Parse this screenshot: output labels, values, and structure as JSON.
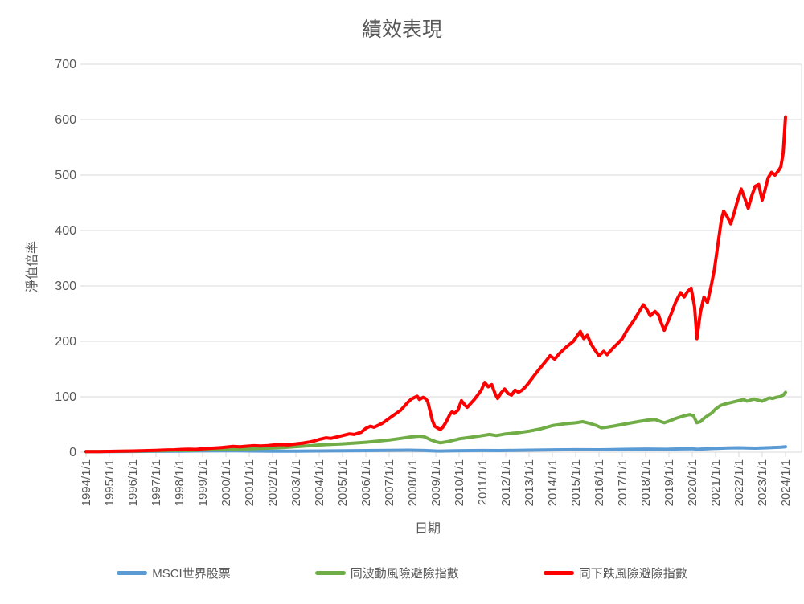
{
  "window": {
    "background": "#ffffff"
  },
  "chart_data": {
    "type": "line",
    "title": "績效表現",
    "xlabel": "日期",
    "ylabel": "淨值倍率",
    "ylim": [
      0,
      700
    ],
    "y_ticks": [
      0,
      100,
      200,
      300,
      400,
      500,
      600,
      700
    ],
    "x_tick_labels": [
      "1994/1/1",
      "1995/1/1",
      "1996/1/1",
      "1997/1/1",
      "1998/1/1",
      "1999/1/1",
      "2000/1/1",
      "2001/1/1",
      "2002/1/1",
      "2003/1/1",
      "2004/1/1",
      "2005/1/1",
      "2006/1/1",
      "2007/1/1",
      "2008/1/1",
      "2009/1/1",
      "2010/1/1",
      "2011/1/1",
      "2012/1/1",
      "2013/1/1",
      "2014/1/1",
      "2015/1/1",
      "2016/1/1",
      "2017/1/1",
      "2018/1/1",
      "2019/1/1",
      "2020/1/1",
      "2021/1/1",
      "2022/1/1",
      "2023/1/1",
      "2024/1/1"
    ],
    "x_range_years": [
      1994,
      2024
    ],
    "grid": "horizontal",
    "legend_position": "bottom",
    "axis_text_color": "#595959",
    "gridline_color": "#D9D9D9",
    "series": [
      {
        "name": "MSCI世界股票",
        "color": "#5B9BD5",
        "points": [
          [
            1994.0,
            1
          ],
          [
            1995.0,
            1.1
          ],
          [
            1996.0,
            1.3
          ],
          [
            1997.0,
            1.6
          ],
          [
            1998.0,
            1.9
          ],
          [
            1999.0,
            2.3
          ],
          [
            2000.0,
            2.6
          ],
          [
            2000.5,
            2.5
          ],
          [
            2001.0,
            2.2
          ],
          [
            2002.0,
            1.9
          ],
          [
            2002.7,
            1.7
          ],
          [
            2003.0,
            1.8
          ],
          [
            2004.0,
            2.2
          ],
          [
            2005.0,
            2.5
          ],
          [
            2006.0,
            2.9
          ],
          [
            2007.0,
            3.4
          ],
          [
            2007.8,
            3.6
          ],
          [
            2008.5,
            3.0
          ],
          [
            2009.0,
            2.2
          ],
          [
            2009.2,
            2.0
          ],
          [
            2009.8,
            2.6
          ],
          [
            2010.5,
            2.9
          ],
          [
            2011.0,
            3.1
          ],
          [
            2011.7,
            2.9
          ],
          [
            2012.0,
            3.1
          ],
          [
            2013.0,
            3.6
          ],
          [
            2014.0,
            4.2
          ],
          [
            2015.0,
            4.5
          ],
          [
            2016.0,
            4.4
          ],
          [
            2017.0,
            5.0
          ],
          [
            2018.0,
            5.6
          ],
          [
            2018.9,
            5.2
          ],
          [
            2019.5,
            6.0
          ],
          [
            2020.0,
            6.3
          ],
          [
            2020.2,
            5.2
          ],
          [
            2020.8,
            6.5
          ],
          [
            2021.5,
            7.5
          ],
          [
            2022.0,
            8.0
          ],
          [
            2022.7,
            7.2
          ],
          [
            2023.2,
            8.0
          ],
          [
            2023.8,
            9.0
          ],
          [
            2024.0,
            9.8
          ]
        ]
      },
      {
        "name": "同波動風險避險指數",
        "color": "#70AD47",
        "points": [
          [
            1994.0,
            1
          ],
          [
            1994.5,
            1.2
          ],
          [
            1995.0,
            1.4
          ],
          [
            1995.5,
            1.6
          ],
          [
            1996.0,
            1.9
          ],
          [
            1996.5,
            2.2
          ],
          [
            1997.0,
            2.5
          ],
          [
            1997.5,
            2.9
          ],
          [
            1998.0,
            3.2
          ],
          [
            1998.5,
            3.0
          ],
          [
            1999.0,
            4.0
          ],
          [
            1999.5,
            4.5
          ],
          [
            2000.0,
            5.0
          ],
          [
            2000.5,
            5.5
          ],
          [
            2001.0,
            6.2
          ],
          [
            2001.5,
            6.8
          ],
          [
            2002.0,
            7.6
          ],
          [
            2002.5,
            8.5
          ],
          [
            2003.0,
            10
          ],
          [
            2003.5,
            11.5
          ],
          [
            2004.0,
            13
          ],
          [
            2004.5,
            14
          ],
          [
            2005.0,
            15
          ],
          [
            2005.5,
            16.5
          ],
          [
            2006.0,
            18
          ],
          [
            2006.5,
            20
          ],
          [
            2007.0,
            22
          ],
          [
            2007.5,
            25
          ],
          [
            2008.0,
            28
          ],
          [
            2008.3,
            29
          ],
          [
            2008.5,
            28
          ],
          [
            2008.8,
            22
          ],
          [
            2009.0,
            19
          ],
          [
            2009.2,
            17
          ],
          [
            2009.5,
            19
          ],
          [
            2009.8,
            22
          ],
          [
            2010.0,
            24
          ],
          [
            2010.5,
            27
          ],
          [
            2011.0,
            30
          ],
          [
            2011.3,
            32
          ],
          [
            2011.6,
            30
          ],
          [
            2012.0,
            33
          ],
          [
            2012.5,
            35
          ],
          [
            2013.0,
            38
          ],
          [
            2013.5,
            42
          ],
          [
            2014.0,
            48
          ],
          [
            2014.5,
            51
          ],
          [
            2015.0,
            53
          ],
          [
            2015.3,
            55
          ],
          [
            2015.6,
            52
          ],
          [
            2015.9,
            48
          ],
          [
            2016.1,
            44
          ],
          [
            2016.3,
            45
          ],
          [
            2016.6,
            47
          ],
          [
            2017.0,
            50
          ],
          [
            2017.4,
            53
          ],
          [
            2017.8,
            56
          ],
          [
            2018.1,
            58
          ],
          [
            2018.4,
            59
          ],
          [
            2018.6,
            56
          ],
          [
            2018.8,
            53
          ],
          [
            2019.0,
            56
          ],
          [
            2019.3,
            61
          ],
          [
            2019.6,
            65
          ],
          [
            2019.9,
            68
          ],
          [
            2020.05,
            66
          ],
          [
            2020.2,
            53
          ],
          [
            2020.35,
            55
          ],
          [
            2020.5,
            61
          ],
          [
            2020.7,
            67
          ],
          [
            2020.85,
            71
          ],
          [
            2021.0,
            78
          ],
          [
            2021.2,
            84
          ],
          [
            2021.4,
            87
          ],
          [
            2021.6,
            89
          ],
          [
            2021.8,
            91
          ],
          [
            2022.0,
            93
          ],
          [
            2022.2,
            95
          ],
          [
            2022.35,
            92
          ],
          [
            2022.5,
            94
          ],
          [
            2022.65,
            96
          ],
          [
            2022.8,
            94
          ],
          [
            2023.0,
            92
          ],
          [
            2023.15,
            95
          ],
          [
            2023.3,
            98
          ],
          [
            2023.45,
            97
          ],
          [
            2023.6,
            99
          ],
          [
            2023.75,
            100
          ],
          [
            2023.9,
            103
          ],
          [
            2024.0,
            108
          ]
        ]
      },
      {
        "name": "同下跌風險避險指數",
        "color": "#FF0000",
        "points": [
          [
            1994.0,
            1
          ],
          [
            1994.3,
            1.1
          ],
          [
            1994.6,
            1.2
          ],
          [
            1995.0,
            1.5
          ],
          [
            1995.5,
            1.8
          ],
          [
            1996.0,
            2.2
          ],
          [
            1996.5,
            2.7
          ],
          [
            1997.0,
            3.3
          ],
          [
            1997.4,
            3.9
          ],
          [
            1997.8,
            4.3
          ],
          [
            1998.1,
            5.0
          ],
          [
            1998.4,
            5.4
          ],
          [
            1998.7,
            5.0
          ],
          [
            1999.0,
            6.2
          ],
          [
            1999.4,
            7.2
          ],
          [
            1999.8,
            8.2
          ],
          [
            2000.1,
            9.6
          ],
          [
            2000.3,
            10.4
          ],
          [
            2000.6,
            9.8
          ],
          [
            2000.9,
            10.8
          ],
          [
            2001.2,
            11.8
          ],
          [
            2001.5,
            11.2
          ],
          [
            2001.8,
            12.0
          ],
          [
            2002.1,
            13.2
          ],
          [
            2002.4,
            13.8
          ],
          [
            2002.7,
            13.2
          ],
          [
            2003.0,
            15
          ],
          [
            2003.3,
            16.5
          ],
          [
            2003.6,
            18.5
          ],
          [
            2003.8,
            20.5
          ],
          [
            2004.0,
            23
          ],
          [
            2004.3,
            26
          ],
          [
            2004.5,
            25
          ],
          [
            2004.8,
            28
          ],
          [
            2005.0,
            30
          ],
          [
            2005.3,
            33
          ],
          [
            2005.5,
            32
          ],
          [
            2005.8,
            36
          ],
          [
            2006.0,
            43
          ],
          [
            2006.2,
            47
          ],
          [
            2006.35,
            45
          ],
          [
            2006.5,
            48
          ],
          [
            2006.7,
            52
          ],
          [
            2006.9,
            58
          ],
          [
            2007.1,
            64
          ],
          [
            2007.3,
            70
          ],
          [
            2007.5,
            76
          ],
          [
            2007.65,
            83
          ],
          [
            2007.8,
            90
          ],
          [
            2007.95,
            96
          ],
          [
            2008.1,
            99
          ],
          [
            2008.2,
            101
          ],
          [
            2008.3,
            95
          ],
          [
            2008.45,
            99
          ],
          [
            2008.55,
            97
          ],
          [
            2008.65,
            92
          ],
          [
            2008.75,
            75
          ],
          [
            2008.85,
            58
          ],
          [
            2008.95,
            47
          ],
          [
            2009.1,
            43
          ],
          [
            2009.2,
            41
          ],
          [
            2009.3,
            45
          ],
          [
            2009.45,
            55
          ],
          [
            2009.6,
            68
          ],
          [
            2009.7,
            73
          ],
          [
            2009.8,
            70
          ],
          [
            2009.95,
            76
          ],
          [
            2010.1,
            93
          ],
          [
            2010.25,
            85
          ],
          [
            2010.35,
            81
          ],
          [
            2010.5,
            88
          ],
          [
            2010.65,
            95
          ],
          [
            2010.8,
            103
          ],
          [
            2010.95,
            112
          ],
          [
            2011.1,
            126
          ],
          [
            2011.25,
            118
          ],
          [
            2011.4,
            122
          ],
          [
            2011.55,
            105
          ],
          [
            2011.65,
            97
          ],
          [
            2011.8,
            107
          ],
          [
            2011.95,
            114
          ],
          [
            2012.1,
            106
          ],
          [
            2012.25,
            103
          ],
          [
            2012.4,
            112
          ],
          [
            2012.55,
            108
          ],
          [
            2012.7,
            112
          ],
          [
            2012.85,
            118
          ],
          [
            2013.0,
            126
          ],
          [
            2013.25,
            140
          ],
          [
            2013.5,
            153
          ],
          [
            2013.75,
            166
          ],
          [
            2013.9,
            174
          ],
          [
            2014.1,
            168
          ],
          [
            2014.3,
            178
          ],
          [
            2014.6,
            190
          ],
          [
            2014.9,
            200
          ],
          [
            2015.05,
            209
          ],
          [
            2015.2,
            218
          ],
          [
            2015.35,
            205
          ],
          [
            2015.5,
            211
          ],
          [
            2015.65,
            196
          ],
          [
            2015.8,
            186
          ],
          [
            2016.0,
            174
          ],
          [
            2016.2,
            182
          ],
          [
            2016.35,
            176
          ],
          [
            2016.6,
            188
          ],
          [
            2016.8,
            196
          ],
          [
            2017.0,
            205
          ],
          [
            2017.2,
            220
          ],
          [
            2017.5,
            238
          ],
          [
            2017.7,
            252
          ],
          [
            2017.9,
            266
          ],
          [
            2018.05,
            258
          ],
          [
            2018.2,
            246
          ],
          [
            2018.4,
            254
          ],
          [
            2018.55,
            248
          ],
          [
            2018.7,
            230
          ],
          [
            2018.8,
            220
          ],
          [
            2018.95,
            235
          ],
          [
            2019.1,
            250
          ],
          [
            2019.3,
            272
          ],
          [
            2019.5,
            288
          ],
          [
            2019.65,
            280
          ],
          [
            2019.8,
            290
          ],
          [
            2019.95,
            296
          ],
          [
            2020.1,
            262
          ],
          [
            2020.2,
            205
          ],
          [
            2020.35,
            252
          ],
          [
            2020.5,
            280
          ],
          [
            2020.65,
            270
          ],
          [
            2020.8,
            298
          ],
          [
            2020.95,
            330
          ],
          [
            2021.1,
            375
          ],
          [
            2021.25,
            420
          ],
          [
            2021.35,
            435
          ],
          [
            2021.5,
            425
          ],
          [
            2021.65,
            412
          ],
          [
            2021.8,
            432
          ],
          [
            2021.95,
            455
          ],
          [
            2022.1,
            475
          ],
          [
            2022.25,
            458
          ],
          [
            2022.4,
            440
          ],
          [
            2022.55,
            462
          ],
          [
            2022.7,
            480
          ],
          [
            2022.85,
            483
          ],
          [
            2023.0,
            455
          ],
          [
            2023.1,
            470
          ],
          [
            2023.25,
            495
          ],
          [
            2023.4,
            505
          ],
          [
            2023.55,
            500
          ],
          [
            2023.7,
            508
          ],
          [
            2023.8,
            515
          ],
          [
            2023.9,
            540
          ],
          [
            2024.0,
            605
          ]
        ]
      }
    ]
  }
}
